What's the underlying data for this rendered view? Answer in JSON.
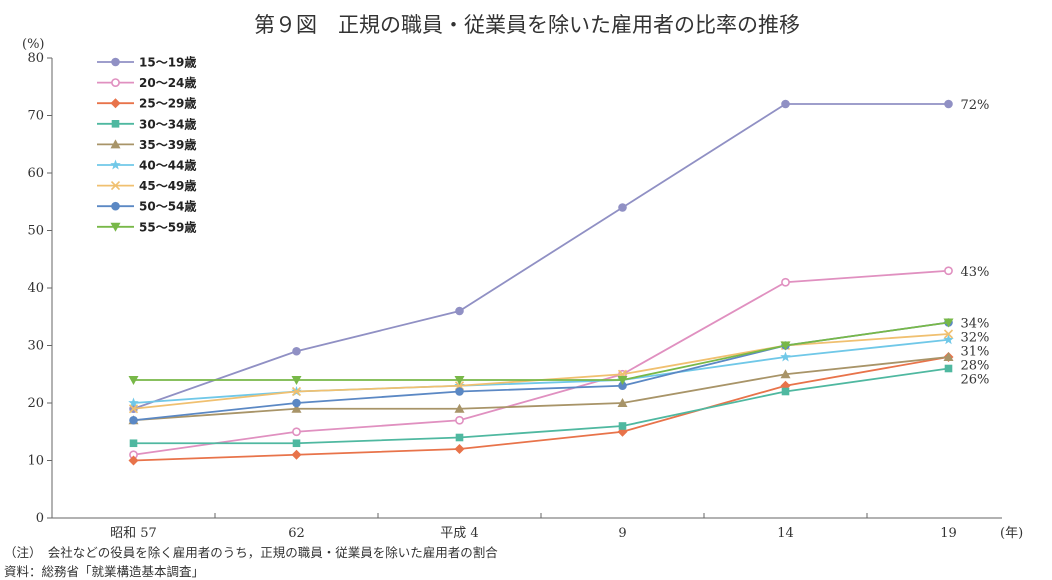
{
  "chart_data": {
    "type": "line",
    "title": "第９図　正規の職員・従業員を除いた雇用者の比率の推移",
    "y_unit": "(%)",
    "x_unit": "(年)",
    "categories": [
      "昭和 57",
      "62",
      "平成 4",
      "9",
      "14",
      "19"
    ],
    "ylim": [
      0,
      80
    ],
    "yticks": [
      0,
      10,
      20,
      30,
      40,
      50,
      60,
      70,
      80
    ],
    "grid": false,
    "legend_position": "top-left",
    "series": [
      {
        "name": "15～19歳",
        "values": [
          19,
          29,
          36,
          54,
          72,
          72
        ],
        "color": "#9090c4",
        "marker": "circle",
        "end_label": "72%"
      },
      {
        "name": "20～24歳",
        "values": [
          11,
          15,
          17,
          25,
          41,
          43
        ],
        "color": "#e090c0",
        "marker": "open-circle",
        "end_label": "43%"
      },
      {
        "name": "25～29歳",
        "values": [
          10,
          11,
          12,
          15,
          23,
          28
        ],
        "color": "#e8734a",
        "marker": "diamond",
        "end_label": ""
      },
      {
        "name": "30～34歳",
        "values": [
          13,
          13,
          14,
          16,
          22,
          26
        ],
        "color": "#4fb8a0",
        "marker": "square",
        "end_label": "26%"
      },
      {
        "name": "35～39歳",
        "values": [
          17,
          19,
          19,
          20,
          25,
          28
        ],
        "color": "#a89468",
        "marker": "triangle",
        "end_label": "28%"
      },
      {
        "name": "40～44歳",
        "values": [
          20,
          22,
          23,
          24,
          28,
          31
        ],
        "color": "#70c8e8",
        "marker": "star",
        "end_label": "31%"
      },
      {
        "name": "45～49歳",
        "values": [
          19,
          22,
          23,
          25,
          30,
          32
        ],
        "color": "#f0c070",
        "marker": "x",
        "end_label": "32%"
      },
      {
        "name": "50～54歳",
        "values": [
          17,
          20,
          22,
          23,
          30,
          34
        ],
        "color": "#5b88c4",
        "marker": "circle",
        "end_label": ""
      },
      {
        "name": "55～59歳",
        "values": [
          24,
          24,
          24,
          24,
          30,
          34
        ],
        "color": "#78b848",
        "marker": "triangle-down",
        "end_label": "34%"
      }
    ],
    "annotations": [
      "（注）　会社などの役員を除く雇用者のうち，正規の職員・従業員を除いた雇用者の割合",
      "資料：総務省「就業構造基本調査」"
    ]
  }
}
